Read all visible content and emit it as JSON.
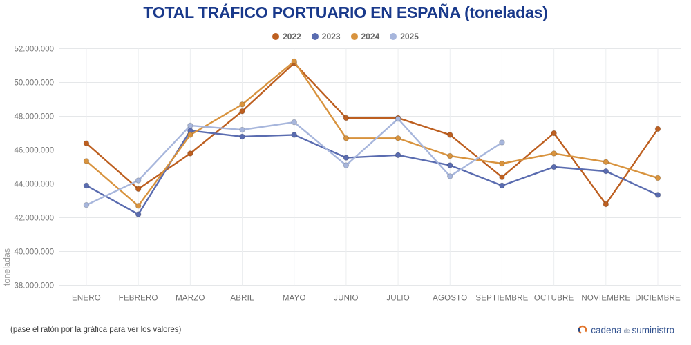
{
  "title": "TOTAL TRÁFICO PORTUARIO EN ESPAÑA (toneladas)",
  "footer": {
    "hint": "(pase el ratón por la gráfica para ver los valores)",
    "brand": {
      "part1": "cadena",
      "part2": "de",
      "part3": "suministro"
    }
  },
  "brand_colors": {
    "icon_orange": "#e2762d",
    "icon_blue": "#2a4a86",
    "text_blue": "#32528f"
  },
  "title_color": "#19398b",
  "chart_data": {
    "type": "line",
    "title": "TOTAL TRÁFICO PORTUARIO EN ESPAÑA (toneladas)",
    "ylabel": "toneladas",
    "ylim": [
      38000000,
      52000000
    ],
    "ytick_step": 2000000,
    "ytick_labels": [
      "38.000.000",
      "40.000.000",
      "42.000.000",
      "44.000.000",
      "46.000.000",
      "48.000.000",
      "50.000.000",
      "52.000.000"
    ],
    "grid": true,
    "legend_position": "top",
    "categories": [
      "ENERO",
      "FEBRERO",
      "MARZO",
      "ABRIL",
      "MAYO",
      "JUNIO",
      "JULIO",
      "AGOSTO",
      "SEPTIEMBRE",
      "OCTUBRE",
      "NOVIEMBRE",
      "DICIEMBRE"
    ],
    "series": [
      {
        "name": "2022",
        "color": "#bd5f20",
        "values": [
          46400000,
          43700000,
          45800000,
          48300000,
          51150000,
          47900000,
          47900000,
          46900000,
          44400000,
          47000000,
          42800000,
          47250000
        ]
      },
      {
        "name": "2023",
        "color": "#5a6cb0",
        "values": [
          43900000,
          42200000,
          47150000,
          46800000,
          46900000,
          45550000,
          45700000,
          45100000,
          43900000,
          45000000,
          44750000,
          43350000
        ]
      },
      {
        "name": "2024",
        "color": "#d8933e",
        "values": [
          45350000,
          42700000,
          46900000,
          48700000,
          51250000,
          46700000,
          46700000,
          45650000,
          45200000,
          45800000,
          45300000,
          44350000
        ]
      },
      {
        "name": "2025",
        "color": "#a7b6dc",
        "values": [
          42750000,
          44200000,
          47450000,
          47200000,
          47650000,
          45100000,
          47850000,
          44450000,
          46450000,
          null,
          null,
          null
        ]
      }
    ]
  }
}
